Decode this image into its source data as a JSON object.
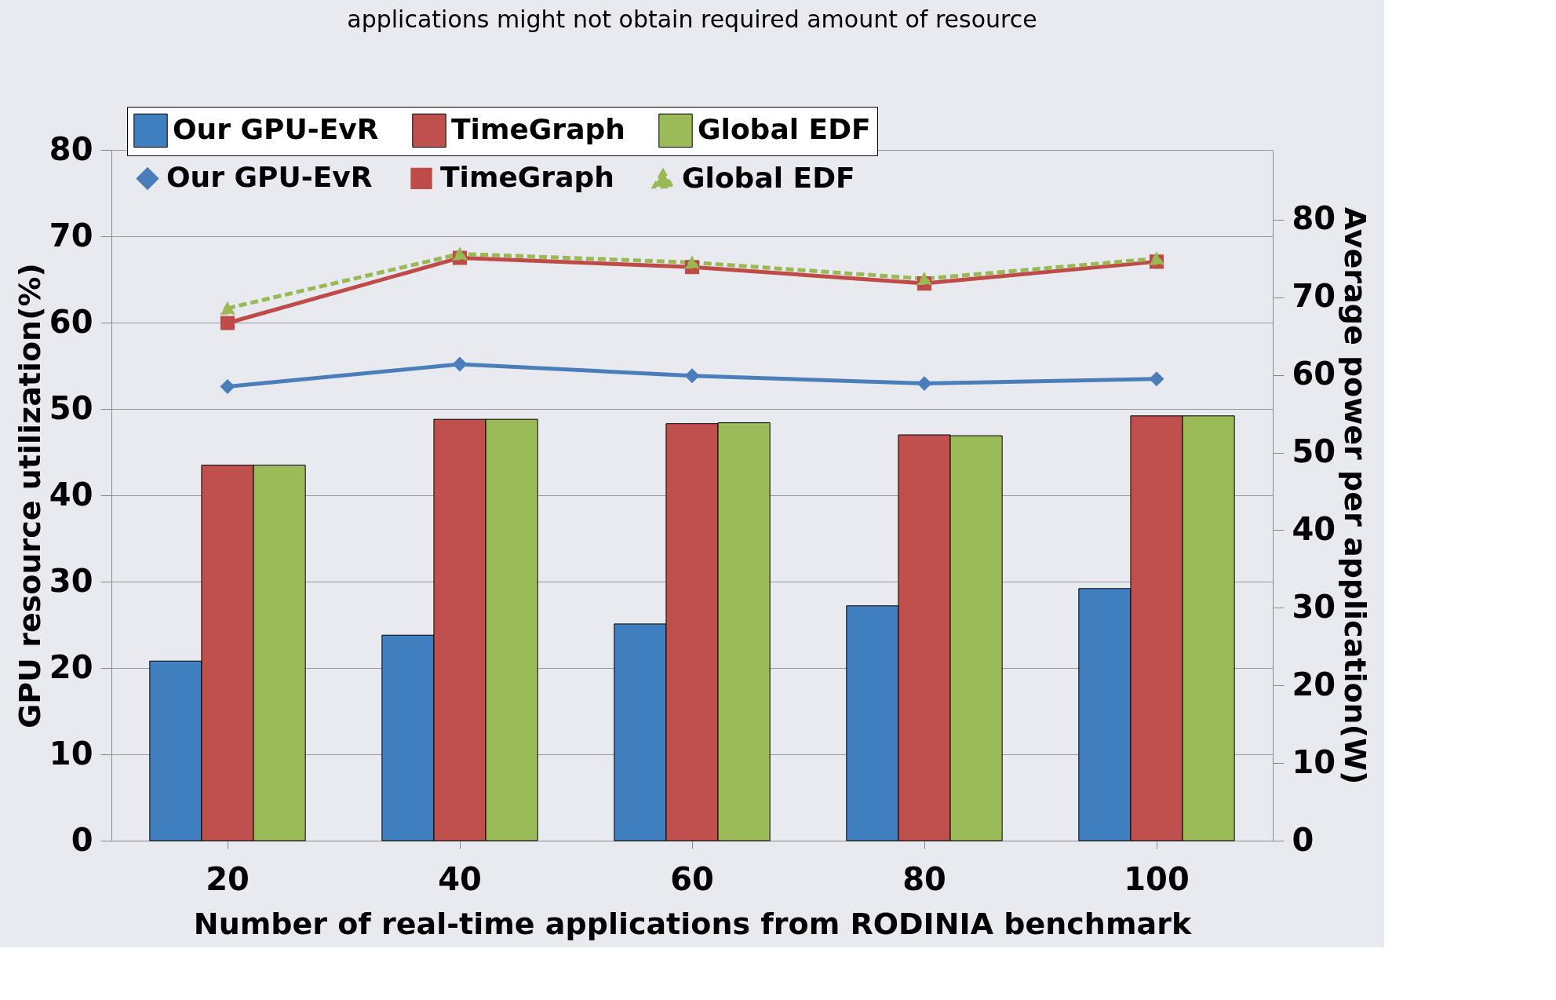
{
  "chart_data": {
    "type": "bar",
    "title": "applications might not obtain required amount of resource",
    "xlabel": "Number of real-time applications from RODINIA benchmark",
    "ylabel": "GPU resource utilization(%)",
    "y2label": "Average power per application(W)",
    "categories": [
      "20",
      "40",
      "60",
      "80",
      "100"
    ],
    "series": [
      {
        "name": "Our GPU-EvR",
        "color": "#3f7fbf",
        "values": [
          20.8,
          23.8,
          25.1,
          27.2,
          29.2
        ]
      },
      {
        "name": "TimeGraph",
        "color": "#c0504d",
        "values": [
          43.5,
          48.8,
          48.3,
          47.0,
          49.2
        ]
      },
      {
        "name": "Global EDF",
        "color": "#9bbb59",
        "values": [
          43.5,
          48.8,
          48.4,
          46.9,
          49.2
        ]
      },
      {
        "name": "Our GPU-EvR",
        "type": "line",
        "axis": "y2",
        "marker": "diamond",
        "line_style": "solid",
        "color": "#4a7ebb",
        "values": [
          58.5,
          61.4,
          59.9,
          58.9,
          59.5
        ]
      },
      {
        "name": "TimeGraph",
        "type": "line",
        "axis": "y2",
        "marker": "square",
        "line_style": "solid",
        "color": "#be4b48",
        "values": [
          66.7,
          75.1,
          73.9,
          71.8,
          74.6
        ]
      },
      {
        "name": "Global EDF",
        "type": "line",
        "axis": "y2",
        "marker": "triangle",
        "line_style": "dashed",
        "color": "#98b954",
        "values": [
          68.6,
          75.6,
          74.5,
          72.4,
          75.0
        ]
      }
    ],
    "ylim": [
      0,
      80
    ],
    "yticks": [
      0,
      10,
      20,
      30,
      40,
      50,
      60,
      70,
      80
    ],
    "y2lim": [
      0,
      89
    ],
    "y2ticks": [
      0,
      10,
      20,
      30,
      40,
      50,
      60,
      70,
      80
    ],
    "grid": "y",
    "legend": "top"
  }
}
